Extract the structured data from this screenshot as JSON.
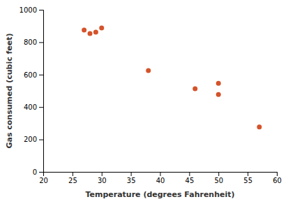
{
  "chart_data": {
    "type": "scatter",
    "xlabel": "Temperature (degrees Fahrenheit)",
    "ylabel": "Gas consumed (cubic feet)",
    "x": [
      27,
      28,
      29,
      30,
      38,
      46,
      50,
      50,
      57
    ],
    "values": [
      875,
      853,
      862,
      888,
      625,
      513,
      477,
      546,
      277
    ],
    "color": "#d4532a",
    "xlim": [
      20,
      60
    ],
    "ylim": [
      0,
      1000
    ],
    "xticks": [
      20,
      25,
      30,
      35,
      40,
      45,
      50,
      55,
      60
    ],
    "yticks": [
      0,
      200,
      400,
      600,
      800,
      1000
    ],
    "grid": false
  }
}
